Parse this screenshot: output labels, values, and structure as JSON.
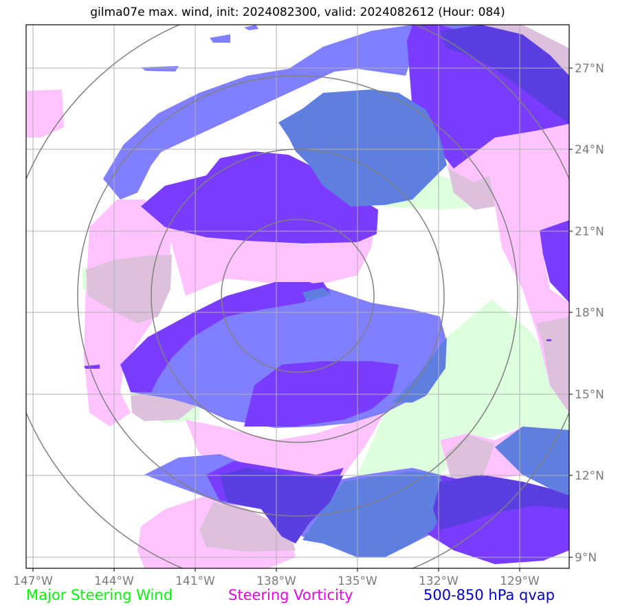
{
  "title": "gilma07e max. wind, init: 2024082300, valid: 2024082612 (Hour: 084)",
  "axes": {
    "lon_labels": [
      "147°W",
      "144°W",
      "141°W",
      "138°W",
      "135°W",
      "132°W",
      "129°W"
    ],
    "lat_labels": [
      "27°N",
      "24°N",
      "21°N",
      "18°N",
      "15°N",
      "12°N",
      "9°N"
    ]
  },
  "legend": [
    {
      "label": "Major Steering Wind",
      "color": "#00ff00"
    },
    {
      "label": "Steering Vorticity",
      "color": "#ee00ee"
    },
    {
      "label": "500-850 hPa qvap",
      "color": "#0000cc"
    }
  ],
  "colors": {
    "wind": "#ddffdd",
    "vorticity": "#ffc4ff",
    "qvap_light": "#7f7fff",
    "qvap_dark": "#7a3cff",
    "overlap_wind_qvap": "#5f7fe0",
    "overlap_vort_qvap": "#5a3ee0",
    "overlap_wind_vort": "#dcc0dc",
    "range_rings": "#808080",
    "grid": "#b0b0b0"
  }
}
